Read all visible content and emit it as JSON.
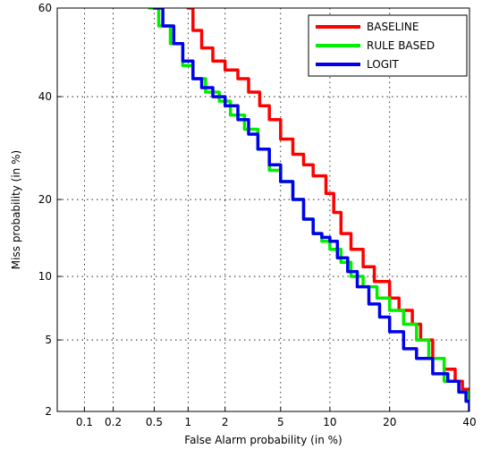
{
  "chart_data": {
    "type": "line",
    "xlabel": "False Alarm probability (in %)",
    "ylabel": "Miss probability (in %)",
    "x_scale": "normal-deviate",
    "y_scale": "normal-deviate",
    "xlim": [
      0.05,
      40
    ],
    "ylim": [
      2,
      60
    ],
    "xticks": [
      0.1,
      0.2,
      0.5,
      1,
      2,
      5,
      10,
      20,
      40
    ],
    "xtick_labels": [
      "0.1",
      "0.2",
      "0.5",
      "1",
      "2",
      "5",
      "10",
      "20",
      "40"
    ],
    "yticks": [
      2,
      5,
      10,
      20,
      40,
      60
    ],
    "ytick_labels": [
      "2",
      "5",
      "10",
      "20",
      "40",
      "60"
    ],
    "grid": true,
    "legend_position": "top-right",
    "series": [
      {
        "name": "BASELINE",
        "color": "#ff0000",
        "points": [
          [
            1.0,
            60
          ],
          [
            1.1,
            55
          ],
          [
            1.3,
            51
          ],
          [
            1.6,
            48
          ],
          [
            2.0,
            46
          ],
          [
            2.5,
            44
          ],
          [
            3.0,
            41
          ],
          [
            3.6,
            38
          ],
          [
            4.2,
            35
          ],
          [
            5.0,
            31
          ],
          [
            6.0,
            28
          ],
          [
            7.0,
            26
          ],
          [
            8.0,
            24
          ],
          [
            9.5,
            21
          ],
          [
            10.5,
            18
          ],
          [
            11.5,
            15
          ],
          [
            13.0,
            13
          ],
          [
            15.0,
            11
          ],
          [
            17.0,
            9.5
          ],
          [
            20.0,
            8
          ],
          [
            22.0,
            7
          ],
          [
            25.0,
            6
          ],
          [
            27.0,
            5
          ],
          [
            30.0,
            4
          ],
          [
            33.0,
            3.5
          ],
          [
            36.0,
            3
          ],
          [
            38.0,
            2.7
          ],
          [
            40.0,
            2.3
          ]
        ]
      },
      {
        "name": "RULE BASED",
        "color": "#00ee00",
        "points": [
          [
            0.45,
            60
          ],
          [
            0.55,
            56
          ],
          [
            0.7,
            52
          ],
          [
            0.9,
            47
          ],
          [
            1.1,
            44
          ],
          [
            1.4,
            41
          ],
          [
            1.8,
            39
          ],
          [
            2.2,
            36
          ],
          [
            2.8,
            33
          ],
          [
            3.5,
            29
          ],
          [
            4.2,
            25
          ],
          [
            5.0,
            23
          ],
          [
            6.0,
            20
          ],
          [
            7.0,
            17
          ],
          [
            8.0,
            15
          ],
          [
            9.0,
            14
          ],
          [
            10.0,
            13
          ],
          [
            11.5,
            11.5
          ],
          [
            13.0,
            10
          ],
          [
            15.0,
            9
          ],
          [
            17.5,
            8
          ],
          [
            20.0,
            7
          ],
          [
            23.0,
            6
          ],
          [
            26.0,
            5
          ],
          [
            29.0,
            4
          ],
          [
            33.0,
            3
          ],
          [
            37.0,
            2.6
          ],
          [
            40.0,
            2.3
          ]
        ]
      },
      {
        "name": "LOGIT",
        "color": "#0000ee",
        "points": [
          [
            0.5,
            60
          ],
          [
            0.6,
            56
          ],
          [
            0.75,
            52
          ],
          [
            0.9,
            48
          ],
          [
            1.1,
            44
          ],
          [
            1.3,
            42
          ],
          [
            1.6,
            40
          ],
          [
            2.0,
            38
          ],
          [
            2.5,
            35
          ],
          [
            3.0,
            32
          ],
          [
            3.5,
            29
          ],
          [
            4.2,
            26
          ],
          [
            5.0,
            23
          ],
          [
            6.0,
            20
          ],
          [
            7.0,
            17
          ],
          [
            8.0,
            15
          ],
          [
            9.0,
            14.5
          ],
          [
            10.0,
            14
          ],
          [
            11.0,
            12
          ],
          [
            12.5,
            10.5
          ],
          [
            14.0,
            9
          ],
          [
            16.0,
            7.5
          ],
          [
            18.0,
            6.5
          ],
          [
            20.0,
            5.5
          ],
          [
            23.0,
            4.5
          ],
          [
            26.0,
            4
          ],
          [
            30.0,
            3.3
          ],
          [
            34.0,
            3
          ],
          [
            37.0,
            2.6
          ],
          [
            39.0,
            2.3
          ],
          [
            40.0,
            2.0
          ]
        ]
      }
    ]
  }
}
